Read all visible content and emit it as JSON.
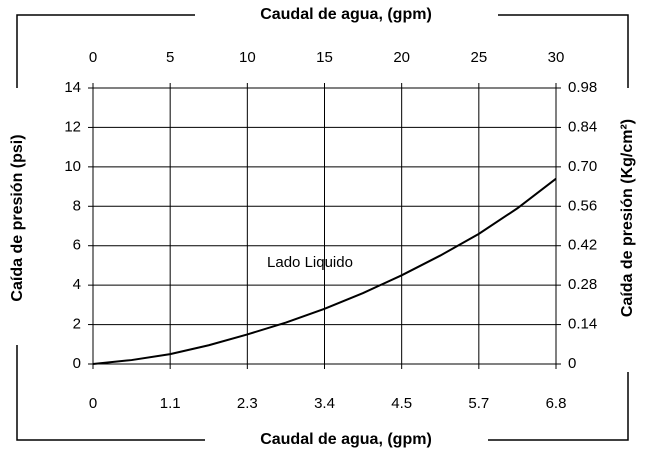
{
  "chart_data": {
    "type": "line",
    "title": "Caudal de agua, (gpm)",
    "x2_label": "Caudal de agua, (gpm)",
    "y_label": "Caída de presión (psi)",
    "y2_label": "Caída de presión (Kg/cm²)",
    "annotation": "Lado Liquido",
    "x": [
      0,
      2.5,
      5,
      7.5,
      10,
      12.5,
      15,
      17.5,
      20,
      22.5,
      25,
      27.5,
      30
    ],
    "values": [
      0,
      0.2,
      0.5,
      0.95,
      1.5,
      2.1,
      2.8,
      3.6,
      4.5,
      5.5,
      6.6,
      7.9,
      9.4
    ],
    "color": "#000000",
    "xlim": [
      0,
      30
    ],
    "xticks": [
      0,
      5,
      10,
      15,
      20,
      25,
      30
    ],
    "x2lim": [
      0,
      6.8137
    ],
    "x2ticks": [
      0,
      {
        "value": 1.1356,
        "label": "1.1"
      },
      {
        "value": 2.2712,
        "label": "2.3"
      },
      {
        "value": 3.4069,
        "label": "3.4"
      },
      {
        "value": 4.5425,
        "label": "4.5"
      },
      {
        "value": 5.6781,
        "label": "5.7"
      },
      {
        "value": 6.8137,
        "label": "6.8"
      }
    ],
    "ylim": [
      0,
      14
    ],
    "yticks": [
      0,
      2,
      4,
      6,
      8,
      10,
      12,
      14
    ],
    "y2lim": [
      0,
      0.98
    ],
    "y2ticks": [
      0,
      0.14,
      0.28,
      0.42,
      0.56,
      {
        "value": 0.7,
        "label": "0.70"
      },
      0.84,
      0.98
    ],
    "grid": true
  }
}
